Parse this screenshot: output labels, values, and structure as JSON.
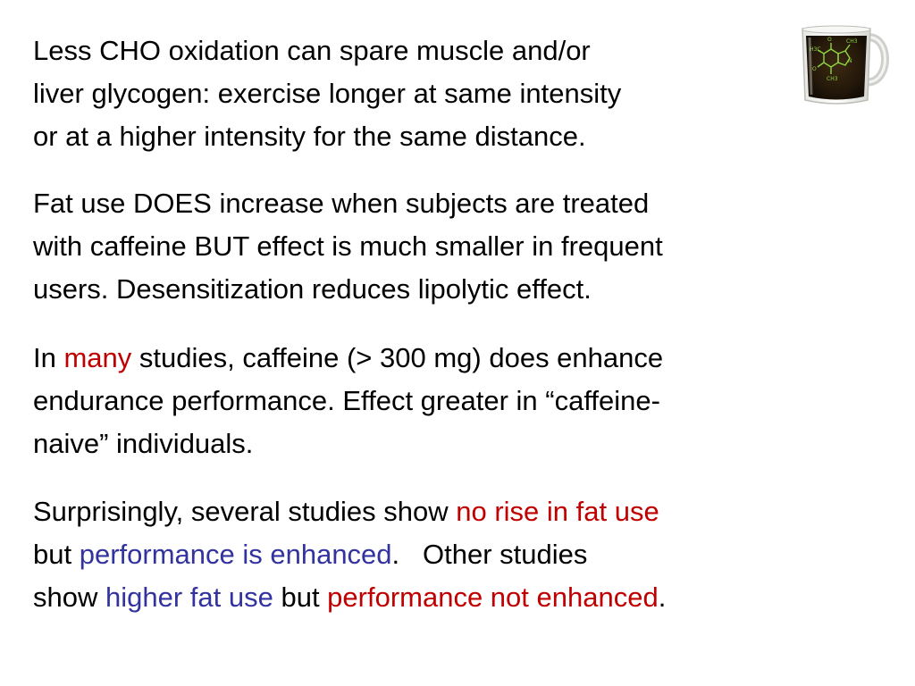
{
  "colors": {
    "text": "#000000",
    "emphasis_red": "#c00000",
    "emphasis_blue": "#3333a0",
    "background": "#ffffff"
  },
  "image": {
    "icon": "coffee-mug-with-caffeine-molecule-icon"
  },
  "paragraph1": {
    "line1": "Less CHO oxidation can spare muscle and/or",
    "line2": "liver glycogen: exercise longer at same intensity",
    "line3": "or at a higher intensity for the same distance."
  },
  "paragraph2": {
    "line1": "Fat use DOES increase when subjects are treated",
    "line2": "with caffeine BUT effect is much smaller in frequent",
    "line3": "users. Desensitization reduces lipolytic effect."
  },
  "paragraph3": {
    "line1_pre": "In ",
    "line1_emph": "many",
    "line1_post": " studies, caffeine (> 300 mg) does enhance",
    "line2": "endurance performance. Effect greater in “caffeine-",
    "line3": "naive” individuals."
  },
  "paragraph4": {
    "line1_pre": "Surprisingly, several studies show ",
    "line1_emph": "no rise in fat use",
    "line2_pre": "but ",
    "line2_emph": "performance is enhanced",
    "line2_post": ".   Other studies",
    "line3_pre": "show ",
    "line3_emph1": "higher fat use",
    "line3_mid": " but ",
    "line3_emph2": "performance not enhanced",
    "line3_post": "."
  }
}
